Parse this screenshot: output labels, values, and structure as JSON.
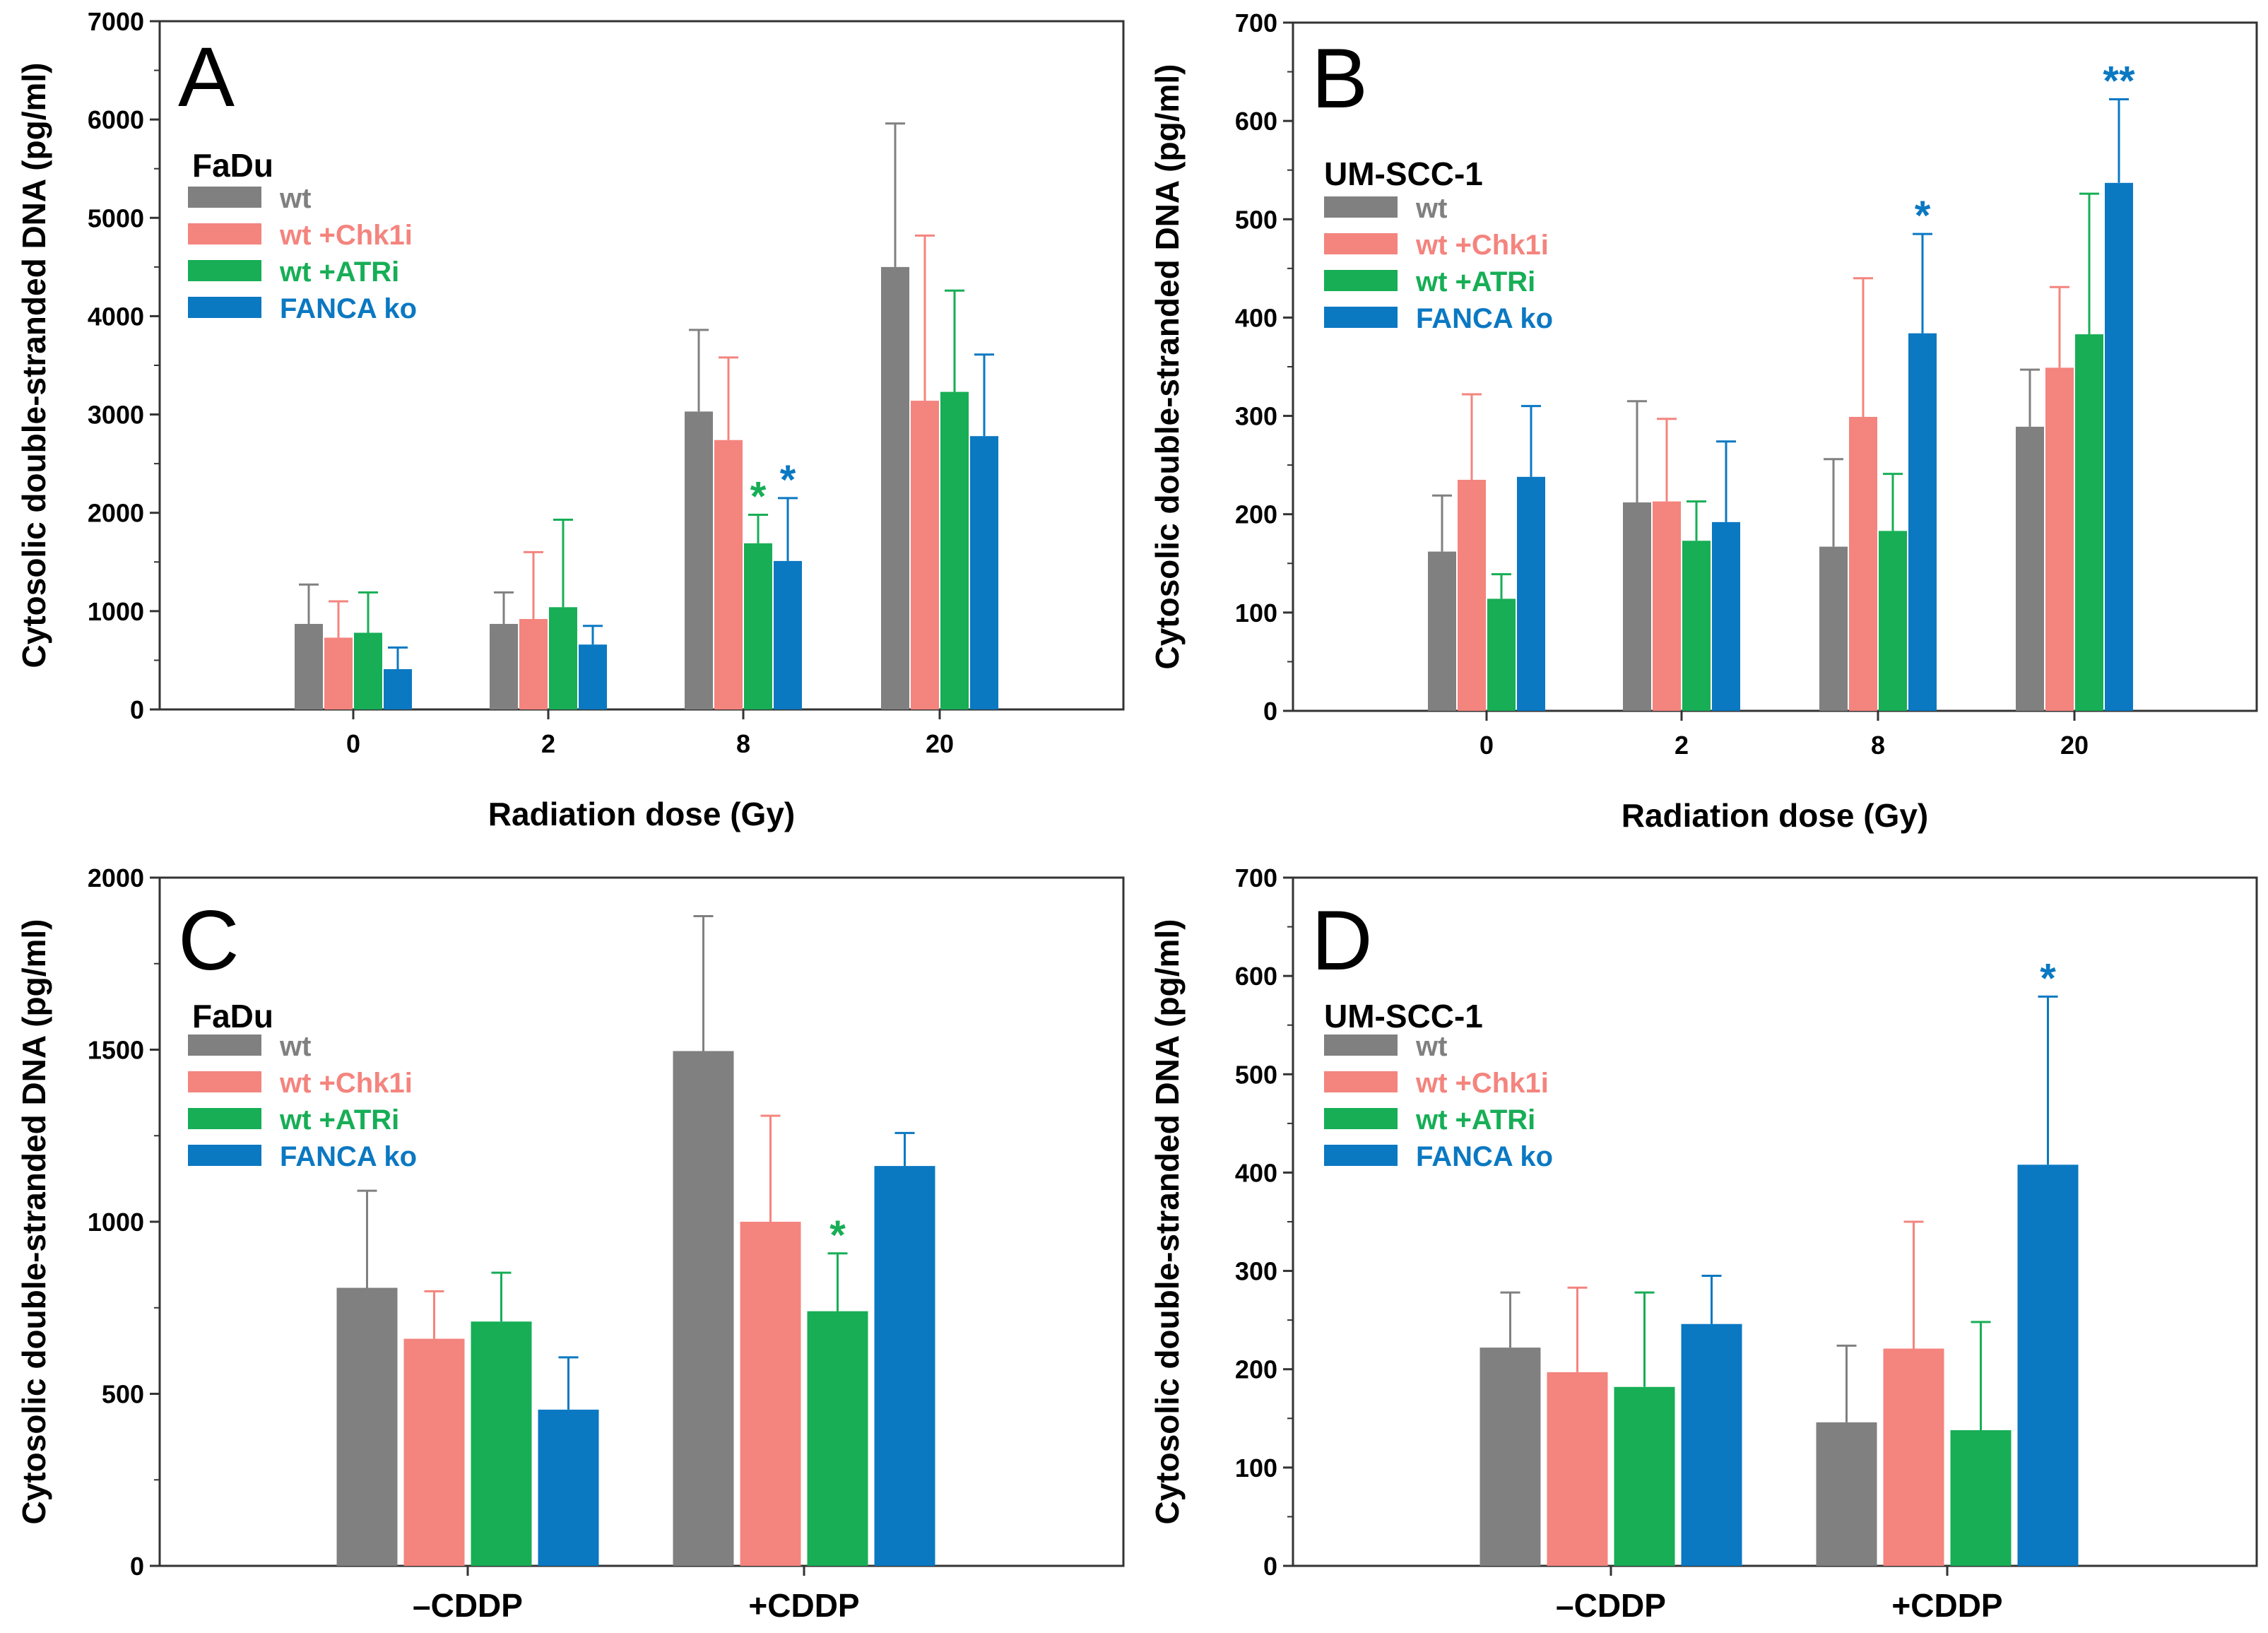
{
  "chart_data": [
    {
      "type": "bar",
      "panel": "A",
      "cell_line": "FaDu",
      "ylabel": "Cytosolic double-stranded DNA (pg/ml)",
      "xlabel": "Radiation dose (Gy)",
      "ylim": [
        0,
        7000
      ],
      "yticks": [
        "0",
        "1000",
        "2000",
        "3000",
        "4000",
        "5000",
        "6000",
        "7000"
      ],
      "categories": [
        "0",
        "2",
        "8",
        "20"
      ],
      "series": [
        {
          "name": "wt",
          "color": "#808080",
          "values": [
            870,
            870,
            3030,
            4500
          ],
          "errors": [
            400,
            320,
            830,
            1460
          ]
        },
        {
          "name": "wt +Chk1i",
          "color": "#f4847e",
          "values": [
            730,
            920,
            2740,
            3140
          ],
          "errors": [
            370,
            680,
            840,
            1680
          ]
        },
        {
          "name": "wt +ATRi",
          "color": "#17ae56",
          "values": [
            780,
            1040,
            1690,
            3230
          ],
          "errors": [
            410,
            890,
            290,
            1030
          ]
        },
        {
          "name": "FANCA ko",
          "color": "#0b78c2",
          "values": [
            410,
            660,
            1510,
            2780
          ],
          "errors": [
            220,
            190,
            640,
            830
          ]
        }
      ],
      "significance": [
        {
          "category": "8",
          "series": "wt +ATRi",
          "label": "*"
        },
        {
          "category": "8",
          "series": "FANCA ko",
          "label": "*"
        }
      ]
    },
    {
      "type": "bar",
      "panel": "B",
      "cell_line": "UM-SCC-1",
      "ylabel": "Cytosolic double-stranded DNA (pg/ml)",
      "xlabel": "Radiation dose (Gy)",
      "ylim": [
        0,
        700
      ],
      "yticks": [
        "0",
        "100",
        "200",
        "300",
        "400",
        "500",
        "600",
        "700"
      ],
      "categories": [
        "0",
        "2",
        "8",
        "20"
      ],
      "series": [
        {
          "name": "wt",
          "color": "#808080",
          "values": [
            162,
            212,
            167,
            289
          ],
          "errors": [
            57,
            103,
            89,
            58
          ]
        },
        {
          "name": "wt +Chk1i",
          "color": "#f4847e",
          "values": [
            235,
            213,
            299,
            349
          ],
          "errors": [
            87,
            84,
            141,
            82
          ]
        },
        {
          "name": "wt +ATRi",
          "color": "#17ae56",
          "values": [
            114,
            173,
            183,
            383
          ],
          "errors": [
            25,
            40,
            58,
            143
          ]
        },
        {
          "name": "FANCA ko",
          "color": "#0b78c2",
          "values": [
            238,
            192,
            384,
            537
          ],
          "errors": [
            72,
            82,
            101,
            85
          ]
        }
      ],
      "significance": [
        {
          "category": "8",
          "series": "FANCA ko",
          "label": "*"
        },
        {
          "category": "20",
          "series": "FANCA ko",
          "label": "**"
        }
      ]
    },
    {
      "type": "bar",
      "panel": "C",
      "cell_line": "FaDu",
      "ylabel": "Cytosolic double-stranded DNA (pg/ml)",
      "xlabel": "",
      "ylim": [
        0,
        2000
      ],
      "yticks": [
        "0",
        "500",
        "1000",
        "1500",
        "2000"
      ],
      "categories": [
        "–CDDP",
        "+CDDP"
      ],
      "series": [
        {
          "name": "wt",
          "color": "#808080",
          "values": [
            808,
            1496
          ],
          "errors": [
            282,
            392
          ]
        },
        {
          "name": "wt +Chk1i",
          "color": "#f4847e",
          "values": [
            660,
            1000
          ],
          "errors": [
            138,
            308
          ]
        },
        {
          "name": "wt +ATRi",
          "color": "#17ae56",
          "values": [
            710,
            740
          ],
          "errors": [
            142,
            168
          ]
        },
        {
          "name": "FANCA ko",
          "color": "#0b78c2",
          "values": [
            454,
            1162
          ],
          "errors": [
            152,
            96
          ]
        }
      ],
      "significance": [
        {
          "category": "+CDDP",
          "series": "wt +ATRi",
          "label": "*"
        }
      ]
    },
    {
      "type": "bar",
      "panel": "D",
      "cell_line": "UM-SCC-1",
      "ylabel": "Cytosolic double-stranded DNA (pg/ml)",
      "xlabel": "",
      "ylim": [
        0,
        700
      ],
      "yticks": [
        "0",
        "100",
        "200",
        "300",
        "400",
        "500",
        "600",
        "700"
      ],
      "categories": [
        "–CDDP",
        "+CDDP"
      ],
      "series": [
        {
          "name": "wt",
          "color": "#808080",
          "values": [
            222,
            146
          ],
          "errors": [
            56,
            78
          ]
        },
        {
          "name": "wt +Chk1i",
          "color": "#f4847e",
          "values": [
            197,
            221
          ],
          "errors": [
            86,
            129
          ]
        },
        {
          "name": "wt +ATRi",
          "color": "#17ae56",
          "values": [
            182,
            138
          ],
          "errors": [
            96,
            110
          ]
        },
        {
          "name": "FANCA ko",
          "color": "#0b78c2",
          "values": [
            246,
            408
          ],
          "errors": [
            49,
            171
          ]
        }
      ],
      "significance": [
        {
          "category": "+CDDP",
          "series": "FANCA ko",
          "label": "*"
        }
      ]
    }
  ]
}
